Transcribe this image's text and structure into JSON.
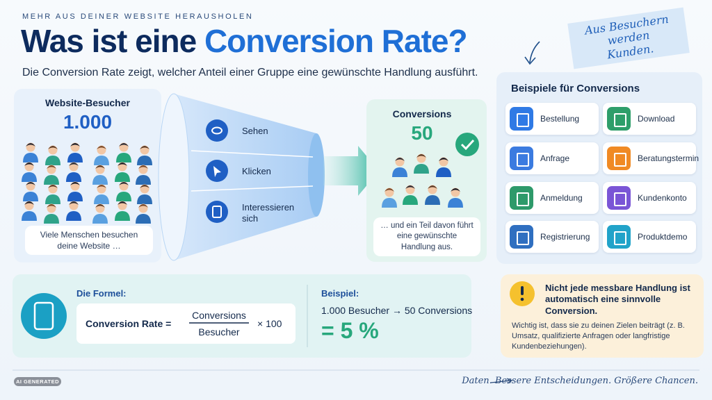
{
  "header": {
    "kicker": "MEHR AUS DEINER WEBSITE HERAUSHOLEN",
    "title_start": "Was ist eine",
    "title_highlight": "Conversion Rate?",
    "subtitle": "Die Conversion Rate zeigt, welcher Anteil einer Gruppe eine gewünschte Handlung ausführt.",
    "note": "Aus Besuchern werden Kunden."
  },
  "visitors": {
    "label": "Website-Besucher",
    "count": "1.000",
    "caption": "Viele Menschen besuchen deine Website …"
  },
  "funnel": {
    "steps": [
      "Sehen",
      "Klicken",
      "Interessieren sich"
    ]
  },
  "conversions": {
    "label": "Conversions",
    "count": "50",
    "caption": "… und ein Teil davon führt eine gewünschte Handlung aus."
  },
  "examples": {
    "title": "Beispiele für Conversions",
    "items": [
      "Bestellung",
      "Download",
      "Anfrage",
      "Beratungstermin",
      "Anmeldung",
      "Kundenkonto",
      "Registrierung",
      "Produktdemo"
    ]
  },
  "formula": {
    "label": "Die Formel:",
    "lhs": "Conversion Rate =",
    "numerator": "Conversions",
    "denominator": "Besucher",
    "multiplier": "× 100"
  },
  "example": {
    "label": "Beispiel:",
    "calculation": "1.000 Besucher → 50 Conversions",
    "result": "= 5 %"
  },
  "notice": {
    "heading": "Nicht jede messbare Handlung ist automatisch eine sinnvolle Conversion.",
    "body": "Wichtig ist, dass sie zu deinen Zielen beiträgt (z. B. Umsatz, qualifizierte Anfragen oder langfristige Kundenbeziehungen)."
  },
  "footer": {
    "badge": "AI GENERATED",
    "tagline": "Daten. Bessere Entscheidungen. Größere Chancen."
  }
}
